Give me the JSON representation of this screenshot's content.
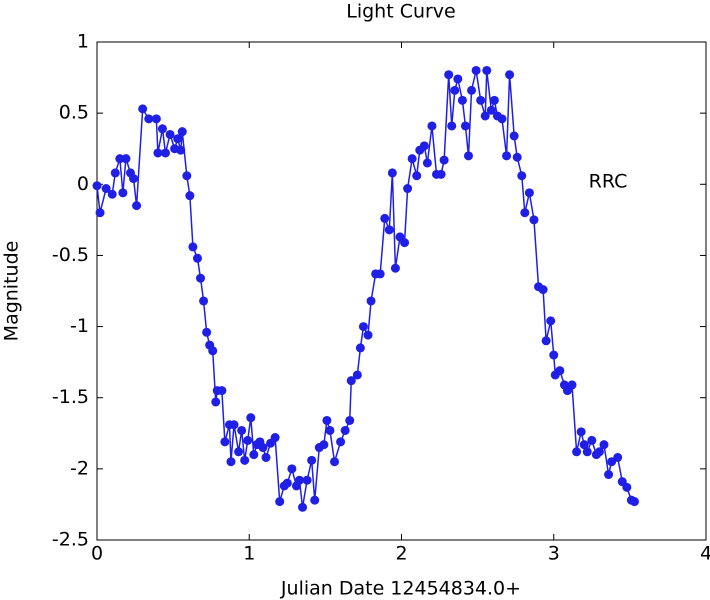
{
  "chart_data": {
    "type": "line",
    "title": "Light Curve",
    "xlabel": "Julian Date 12454834.0+",
    "ylabel": "Magnitude",
    "annotation": "RRC",
    "color": "#1f1fe6",
    "marker": true,
    "grid": false,
    "xlim": [
      0,
      4
    ],
    "xticks": [
      0,
      1,
      2,
      3,
      4
    ],
    "ylim": [
      -2.5,
      1
    ],
    "yticks": [
      1,
      0.5,
      0,
      -0.5,
      -1,
      -1.5,
      -2,
      -2.5
    ],
    "x": [
      0,
      0.02,
      0.06,
      0.1,
      0.12,
      0.15,
      0.17,
      0.19,
      0.22,
      0.24,
      0.26,
      0.3,
      0.34,
      0.39,
      0.4,
      0.43,
      0.45,
      0.48,
      0.51,
      0.53,
      0.55,
      0.56,
      0.59,
      0.61,
      0.63,
      0.66,
      0.68,
      0.7,
      0.72,
      0.74,
      0.76,
      0.78,
      0.79,
      0.82,
      0.84,
      0.87,
      0.88,
      0.9,
      0.93,
      0.95,
      0.97,
      0.99,
      1.01,
      1.03,
      1.05,
      1.07,
      1.09,
      1.11,
      1.14,
      1.17,
      1.2,
      1.23,
      1.25,
      1.28,
      1.31,
      1.33,
      1.35,
      1.38,
      1.41,
      1.43,
      1.46,
      1.49,
      1.51,
      1.53,
      1.56,
      1.6,
      1.63,
      1.66,
      1.67,
      1.71,
      1.73,
      1.75,
      1.78,
      1.8,
      1.83,
      1.86,
      1.89,
      1.92,
      1.94,
      1.96,
      1.99,
      2.02,
      2.04,
      2.07,
      2.1,
      2.12,
      2.15,
      2.17,
      2.2,
      2.23,
      2.26,
      2.28,
      2.31,
      2.33,
      2.35,
      2.37,
      2.4,
      2.42,
      2.44,
      2.46,
      2.49,
      2.52,
      2.55,
      2.56,
      2.59,
      2.61,
      2.63,
      2.66,
      2.69,
      2.71,
      2.74,
      2.76,
      2.79,
      2.81,
      2.84,
      2.87,
      2.9,
      2.93,
      2.95,
      2.98,
      3.0,
      3.01,
      3.04,
      3.07,
      3.09,
      3.12,
      3.15,
      3.18,
      3.2,
      3.22,
      3.25,
      3.28,
      3.3,
      3.33,
      3.36,
      3.38,
      3.42,
      3.45,
      3.48,
      3.51,
      3.53
    ],
    "values": [
      -0.01,
      -0.2,
      -0.03,
      -0.07,
      0.08,
      0.18,
      -0.06,
      0.18,
      0.08,
      0.04,
      -0.15,
      0.53,
      0.46,
      0.46,
      0.22,
      0.39,
      0.22,
      0.35,
      0.25,
      0.32,
      0.24,
      0.37,
      0.06,
      -0.08,
      -0.44,
      -0.52,
      -0.66,
      -0.82,
      -1.04,
      -1.13,
      -1.17,
      -1.53,
      -1.45,
      -1.45,
      -1.81,
      -1.69,
      -1.95,
      -1.69,
      -1.88,
      -1.73,
      -1.94,
      -1.8,
      -1.64,
      -1.9,
      -1.83,
      -1.81,
      -1.85,
      -1.92,
      -1.82,
      -1.78,
      -2.23,
      -2.12,
      -2.1,
      -2.0,
      -2.12,
      -2.08,
      -2.27,
      -2.08,
      -1.94,
      -2.22,
      -1.85,
      -1.83,
      -1.66,
      -1.73,
      -1.95,
      -1.81,
      -1.73,
      -1.66,
      -1.38,
      -1.34,
      -1.15,
      -1.0,
      -1.06,
      -0.82,
      -0.63,
      -0.63,
      -0.24,
      -0.32,
      0.08,
      -0.59,
      -0.37,
      -0.41,
      -0.03,
      0.18,
      0.06,
      0.24,
      0.27,
      0.15,
      0.41,
      0.07,
      0.07,
      0.17,
      0.77,
      0.41,
      0.66,
      0.74,
      0.59,
      0.41,
      0.2,
      0.66,
      0.8,
      0.59,
      0.48,
      0.8,
      0.52,
      0.59,
      0.48,
      0.46,
      0.2,
      0.77,
      0.34,
      0.19,
      0.06,
      -0.2,
      -0.06,
      -0.25,
      -0.72,
      -0.74,
      -1.1,
      -0.96,
      -1.2,
      -1.34,
      -1.31,
      -1.41,
      -1.45,
      -1.41,
      -1.88,
      -1.74,
      -1.83,
      -1.88,
      -1.8,
      -1.9,
      -1.88,
      -1.83,
      -2.04,
      -1.95,
      -1.92,
      -2.09,
      -2.13,
      -2.22,
      -2.23
    ]
  }
}
